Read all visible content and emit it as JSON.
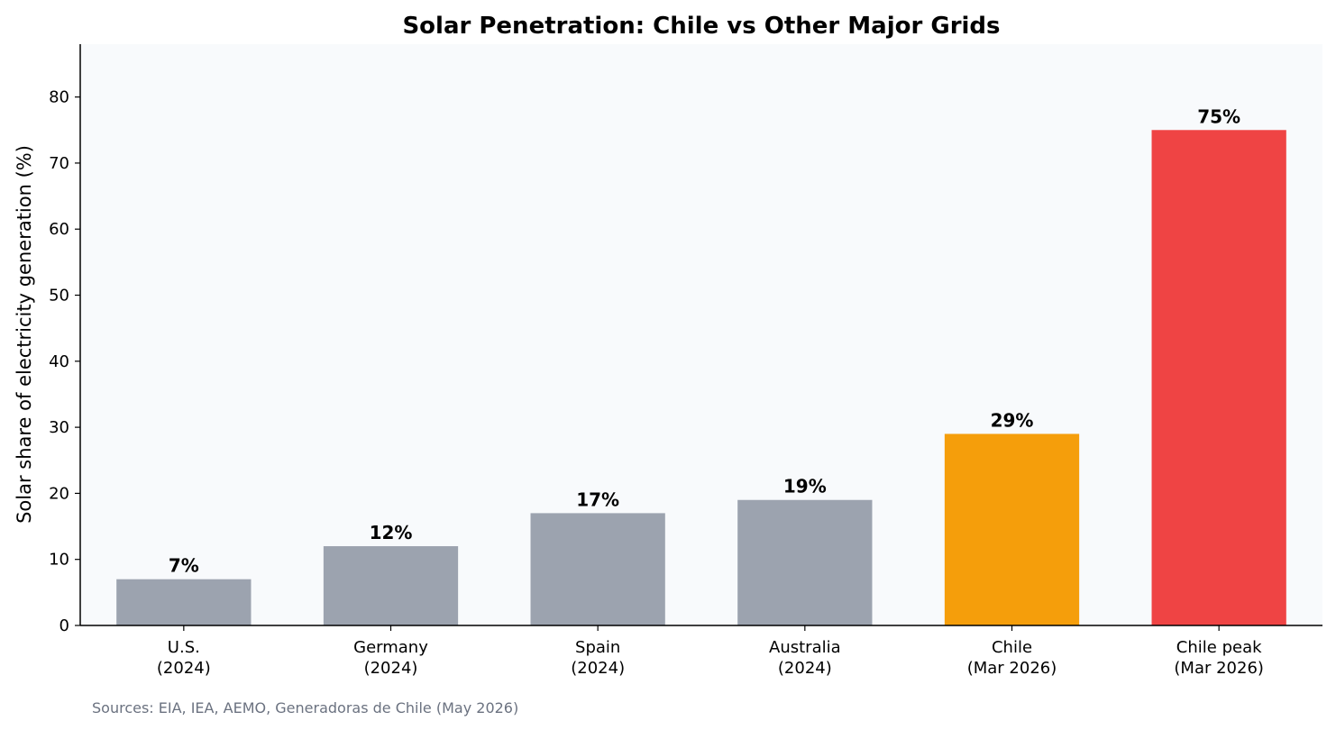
{
  "chart_data": {
    "type": "bar",
    "title": "Solar Penetration: Chile vs Other Major Grids",
    "xlabel": "",
    "ylabel": "Solar share of electricity generation (%)",
    "ylim": [
      0,
      88
    ],
    "yticks": [
      0,
      10,
      20,
      30,
      40,
      50,
      60,
      70,
      80
    ],
    "grid": false,
    "categories": [
      [
        "U.S.",
        "(2024)"
      ],
      [
        "Germany",
        "(2024)"
      ],
      [
        "Spain",
        "(2024)"
      ],
      [
        "Australia",
        "(2024)"
      ],
      [
        "Chile",
        "(Mar 2026)"
      ],
      [
        "Chile peak",
        "(Mar 2026)"
      ]
    ],
    "values": [
      7,
      12,
      17,
      19,
      29,
      75
    ],
    "data_labels": [
      "7%",
      "12%",
      "17%",
      "19%",
      "29%",
      "75%"
    ],
    "bar_colors": [
      "#9ca3af",
      "#9ca3af",
      "#9ca3af",
      "#9ca3af",
      "#f59e0b",
      "#ef4444"
    ],
    "plot_background": "#f8fafc",
    "source_note": "Sources: EIA, IEA, AEMO, Generadoras de Chile (May 2026)"
  }
}
